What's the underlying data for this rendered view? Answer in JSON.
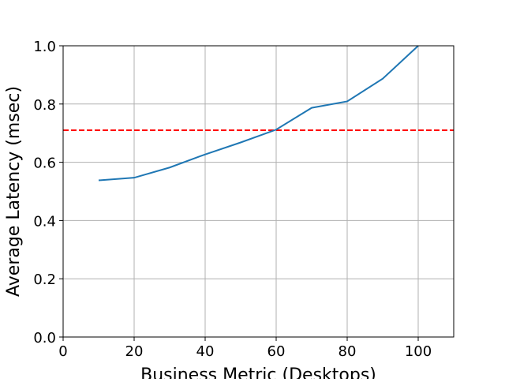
{
  "chart_data": {
    "type": "line",
    "title": "",
    "xlabel": "Business Metric (Desktops)",
    "ylabel": "Average Latency (msec)",
    "xlim": [
      0,
      110
    ],
    "ylim": [
      0.0,
      1.0
    ],
    "xticks": [
      0,
      20,
      40,
      60,
      80,
      100
    ],
    "xtick_labels": [
      "0",
      "20",
      "40",
      "60",
      "80",
      "100"
    ],
    "yticks": [
      0.0,
      0.2,
      0.4,
      0.6,
      0.8,
      1.0
    ],
    "ytick_labels": [
      "0.0",
      "0.2",
      "0.4",
      "0.6",
      "0.8",
      "1.0"
    ],
    "grid": true,
    "series": [
      {
        "color": "#1f77b4",
        "style": "solid",
        "x": [
          10,
          20,
          30,
          40,
          50,
          60,
          70,
          80,
          90,
          100
        ],
        "y": [
          0.538,
          0.547,
          0.582,
          0.627,
          0.668,
          0.712,
          0.787,
          0.809,
          0.887,
          1.0
        ]
      }
    ],
    "reference_lines": [
      {
        "orientation": "horizontal",
        "y": 0.71,
        "color": "#ff0000",
        "style": "dashed"
      }
    ]
  }
}
